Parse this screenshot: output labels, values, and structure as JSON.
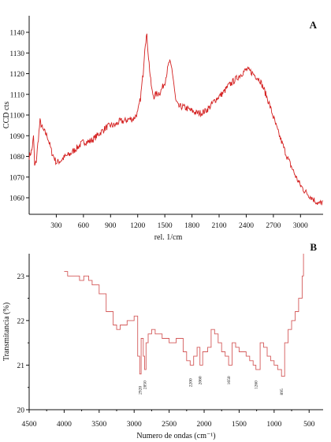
{
  "chart_data": [
    {
      "panel_label": "A",
      "type": "line",
      "xlabel": "rel. 1/cm",
      "ylabel": "CCD cts",
      "xlim": [
        0,
        3250
      ],
      "ylim": [
        1052,
        1148
      ],
      "x_ticks": [
        300,
        600,
        900,
        1200,
        1500,
        1800,
        2100,
        2400,
        2700,
        3000
      ],
      "y_ticks": [
        1060,
        1070,
        1080,
        1090,
        1100,
        1110,
        1120,
        1130,
        1140
      ],
      "grid": false,
      "colors": {
        "line": "#d42020"
      },
      "series": [
        {
          "x": [
            0,
            30,
            50,
            60,
            80,
            100,
            120,
            150,
            200,
            250,
            300,
            350,
            400,
            450,
            500,
            550,
            600,
            650,
            700,
            750,
            800,
            850,
            900,
            950,
            1000,
            1050,
            1100,
            1150,
            1200,
            1230,
            1260,
            1280,
            1300,
            1320,
            1340,
            1360,
            1380,
            1400,
            1450,
            1500,
            1550,
            1580,
            1600,
            1620,
            1650,
            1700,
            1750,
            1800,
            1850,
            1900,
            1950,
            2000,
            2050,
            2100,
            2150,
            2200,
            2250,
            2300,
            2350,
            2400,
            2450,
            2500,
            2550,
            2600,
            2650,
            2700,
            2750,
            2800,
            2850,
            2900,
            2950,
            3000,
            3050,
            3100,
            3150,
            3200,
            3250
          ],
          "values": [
            1080,
            1083,
            1090,
            1075,
            1078,
            1088,
            1097,
            1093,
            1090,
            1082,
            1077,
            1078,
            1080,
            1081,
            1083,
            1085,
            1087,
            1087,
            1088,
            1090,
            1092,
            1094,
            1095,
            1095,
            1097,
            1097,
            1098,
            1098,
            1101,
            1108,
            1120,
            1134,
            1139,
            1128,
            1118,
            1111,
            1109,
            1110,
            1111,
            1116,
            1126,
            1122,
            1115,
            1107,
            1104,
            1104,
            1103,
            1102,
            1101,
            1101,
            1102,
            1104,
            1107,
            1109,
            1111,
            1114,
            1116,
            1118,
            1120,
            1122,
            1121,
            1119,
            1117,
            1112,
            1106,
            1099,
            1092,
            1086,
            1080,
            1075,
            1070,
            1066,
            1063,
            1061,
            1059,
            1057,
            1058
          ]
        }
      ]
    },
    {
      "panel_label": "B",
      "type": "line",
      "xlabel": "Numero de ondas (cm⁻¹)",
      "ylabel": "Transmitancia (%)",
      "xlim": [
        4500,
        300
      ],
      "ylim": [
        20,
        23.5
      ],
      "x_ticks": [
        4500,
        4000,
        3500,
        3000,
        2500,
        2000,
        1500,
        1000,
        500
      ],
      "y_ticks": [
        20,
        21,
        22,
        23
      ],
      "grid": false,
      "colors": {
        "line": "#d45a5a"
      },
      "annotations": [
        {
          "x": 2920,
          "y": 20.78,
          "text": "2920"
        },
        {
          "x": 2850,
          "y": 20.9,
          "text": "2850"
        },
        {
          "x": 2200,
          "y": 20.95,
          "text": "2200"
        },
        {
          "x": 2060,
          "y": 21.0,
          "text": "2060"
        },
        {
          "x": 1650,
          "y": 21.0,
          "text": "1650"
        },
        {
          "x": 1260,
          "y": 20.9,
          "text": "1260"
        },
        {
          "x": 895,
          "y": 20.72,
          "text": "895"
        }
      ],
      "series": [
        {
          "x": [
            4000,
            3950,
            3800,
            3780,
            3720,
            3650,
            3600,
            3500,
            3400,
            3300,
            3250,
            3200,
            3100,
            3000,
            2950,
            2920,
            2900,
            2870,
            2850,
            2830,
            2800,
            2750,
            2700,
            2600,
            2500,
            2400,
            2300,
            2250,
            2200,
            2150,
            2100,
            2060,
            2020,
            1950,
            1900,
            1850,
            1800,
            1750,
            1700,
            1650,
            1600,
            1550,
            1500,
            1450,
            1400,
            1350,
            1300,
            1260,
            1200,
            1150,
            1100,
            1050,
            1000,
            950,
            900,
            895,
            850,
            800,
            750,
            700,
            650,
            600,
            580
          ],
          "values": [
            23.1,
            23.0,
            23.0,
            22.9,
            23.0,
            22.9,
            22.8,
            22.6,
            22.2,
            21.9,
            21.8,
            21.9,
            22.0,
            22.1,
            21.2,
            20.8,
            21.6,
            21.2,
            20.9,
            21.5,
            21.7,
            21.8,
            21.7,
            21.6,
            21.5,
            21.6,
            21.3,
            21.1,
            21.0,
            21.2,
            21.4,
            21.0,
            21.3,
            21.4,
            21.8,
            21.7,
            21.5,
            21.3,
            21.2,
            21.0,
            21.5,
            21.4,
            21.3,
            21.3,
            21.2,
            21.1,
            21.0,
            20.9,
            21.5,
            21.4,
            21.2,
            21.1,
            21.0,
            20.9,
            20.9,
            20.75,
            21.5,
            21.8,
            22.0,
            22.2,
            22.5,
            23.0,
            23.5
          ]
        }
      ]
    }
  ]
}
